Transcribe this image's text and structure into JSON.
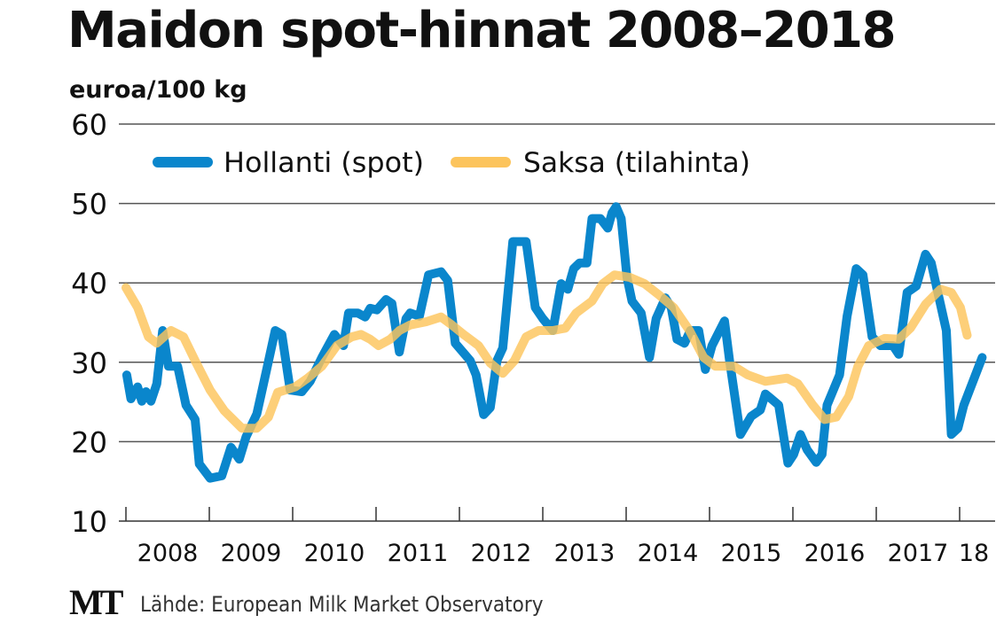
{
  "chart_data": {
    "type": "line",
    "title": "Maidon spot-hinnat 2008–2018",
    "ylabel": "euroa/100 kg",
    "xlabel": "",
    "ylim": [
      10,
      60
    ],
    "xlim": [
      2008,
      2018.32
    ],
    "yticks": [
      "60",
      "50",
      "40",
      "30",
      "20",
      "10"
    ],
    "ytick_values": [
      60,
      50,
      40,
      30,
      20,
      10
    ],
    "xtick_labels": [
      "2008",
      "2009",
      "2010",
      "2011",
      "2012",
      "2013",
      "2014",
      "2015",
      "2016",
      "2017",
      "18"
    ],
    "grid": true,
    "legend_position": "top",
    "series": [
      {
        "name": "Hollanti (spot)",
        "color": "#0a86cc",
        "points": [
          [
            2008.01,
            28.4
          ],
          [
            2008.06,
            25.4
          ],
          [
            2008.14,
            26.9
          ],
          [
            2008.19,
            25.1
          ],
          [
            2008.24,
            26.3
          ],
          [
            2008.3,
            25.1
          ],
          [
            2008.37,
            27.3
          ],
          [
            2008.44,
            34.0
          ],
          [
            2008.51,
            29.5
          ],
          [
            2008.62,
            29.5
          ],
          [
            2008.72,
            24.6
          ],
          [
            2008.83,
            22.8
          ],
          [
            2008.88,
            17.2
          ],
          [
            2009.01,
            15.4
          ],
          [
            2009.15,
            15.7
          ],
          [
            2009.26,
            19.3
          ],
          [
            2009.36,
            17.8
          ],
          [
            2009.44,
            20.6
          ],
          [
            2009.57,
            23.5
          ],
          [
            2009.68,
            28.7
          ],
          [
            2009.79,
            34.0
          ],
          [
            2009.87,
            33.5
          ],
          [
            2009.97,
            26.5
          ],
          [
            2010.11,
            26.3
          ],
          [
            2010.21,
            27.6
          ],
          [
            2010.35,
            30.6
          ],
          [
            2010.5,
            33.5
          ],
          [
            2010.61,
            32.1
          ],
          [
            2010.67,
            36.2
          ],
          [
            2010.78,
            36.2
          ],
          [
            2010.87,
            35.7
          ],
          [
            2010.93,
            36.8
          ],
          [
            2011.01,
            36.6
          ],
          [
            2011.12,
            37.9
          ],
          [
            2011.19,
            37.4
          ],
          [
            2011.28,
            31.3
          ],
          [
            2011.36,
            35.5
          ],
          [
            2011.41,
            36.2
          ],
          [
            2011.52,
            35.8
          ],
          [
            2011.63,
            41.0
          ],
          [
            2011.78,
            41.4
          ],
          [
            2011.86,
            40.3
          ],
          [
            2011.95,
            32.4
          ],
          [
            2012.13,
            30.2
          ],
          [
            2012.2,
            28.4
          ],
          [
            2012.29,
            23.4
          ],
          [
            2012.37,
            24.3
          ],
          [
            2012.45,
            30.2
          ],
          [
            2012.52,
            31.8
          ],
          [
            2012.64,
            45.2
          ],
          [
            2012.8,
            45.2
          ],
          [
            2012.91,
            36.9
          ],
          [
            2013.0,
            35.5
          ],
          [
            2013.12,
            34.0
          ],
          [
            2013.22,
            39.9
          ],
          [
            2013.3,
            39.2
          ],
          [
            2013.37,
            41.8
          ],
          [
            2013.44,
            42.5
          ],
          [
            2013.53,
            42.5
          ],
          [
            2013.59,
            48.1
          ],
          [
            2013.69,
            48.1
          ],
          [
            2013.78,
            46.9
          ],
          [
            2013.83,
            48.8
          ],
          [
            2013.88,
            49.6
          ],
          [
            2013.94,
            48.1
          ],
          [
            2014.01,
            40.7
          ],
          [
            2014.07,
            37.7
          ],
          [
            2014.18,
            36.2
          ],
          [
            2014.28,
            30.6
          ],
          [
            2014.36,
            35.5
          ],
          [
            2014.47,
            38.1
          ],
          [
            2014.54,
            36.9
          ],
          [
            2014.61,
            32.9
          ],
          [
            2014.7,
            32.4
          ],
          [
            2014.77,
            34.0
          ],
          [
            2014.87,
            34.0
          ],
          [
            2014.95,
            29.1
          ],
          [
            2015.03,
            32.1
          ],
          [
            2015.18,
            35.2
          ],
          [
            2015.24,
            30.2
          ],
          [
            2015.37,
            20.9
          ],
          [
            2015.5,
            23.2
          ],
          [
            2015.61,
            24.0
          ],
          [
            2015.67,
            26.0
          ],
          [
            2015.74,
            25.4
          ],
          [
            2015.83,
            24.6
          ],
          [
            2015.94,
            17.3
          ],
          [
            2016.01,
            18.4
          ],
          [
            2016.09,
            20.9
          ],
          [
            2016.17,
            19.0
          ],
          [
            2016.28,
            17.4
          ],
          [
            2016.35,
            18.4
          ],
          [
            2016.41,
            24.6
          ],
          [
            2016.56,
            28.4
          ],
          [
            2016.65,
            35.8
          ],
          [
            2016.76,
            41.8
          ],
          [
            2016.84,
            41.0
          ],
          [
            2016.95,
            33.2
          ],
          [
            2017.05,
            32.1
          ],
          [
            2017.2,
            32.1
          ],
          [
            2017.27,
            31.0
          ],
          [
            2017.37,
            38.8
          ],
          [
            2017.48,
            39.6
          ],
          [
            2017.59,
            43.6
          ],
          [
            2017.66,
            42.5
          ],
          [
            2017.84,
            34.0
          ],
          [
            2017.9,
            20.9
          ],
          [
            2017.98,
            21.7
          ],
          [
            2018.05,
            24.6
          ],
          [
            2018.27,
            30.6
          ]
        ]
      },
      {
        "name": "Saksa (tilahinta)",
        "color": "#fcc45c",
        "points": [
          [
            2008.0,
            39.4
          ],
          [
            2008.14,
            36.9
          ],
          [
            2008.27,
            33.2
          ],
          [
            2008.37,
            32.4
          ],
          [
            2008.54,
            34.0
          ],
          [
            2008.69,
            33.2
          ],
          [
            2008.83,
            30.2
          ],
          [
            2009.01,
            26.5
          ],
          [
            2009.18,
            23.9
          ],
          [
            2009.39,
            21.7
          ],
          [
            2009.57,
            21.7
          ],
          [
            2009.71,
            23.1
          ],
          [
            2009.82,
            26.2
          ],
          [
            2010.03,
            26.9
          ],
          [
            2010.18,
            28.0
          ],
          [
            2010.35,
            29.5
          ],
          [
            2010.53,
            32.1
          ],
          [
            2010.71,
            33.2
          ],
          [
            2010.82,
            33.5
          ],
          [
            2010.93,
            32.9
          ],
          [
            2011.03,
            32.1
          ],
          [
            2011.17,
            32.9
          ],
          [
            2011.28,
            34.0
          ],
          [
            2011.41,
            34.7
          ],
          [
            2011.6,
            35.1
          ],
          [
            2011.78,
            35.7
          ],
          [
            2011.91,
            34.7
          ],
          [
            2012.05,
            33.5
          ],
          [
            2012.23,
            32.1
          ],
          [
            2012.37,
            29.9
          ],
          [
            2012.52,
            28.6
          ],
          [
            2012.66,
            30.2
          ],
          [
            2012.8,
            33.2
          ],
          [
            2012.95,
            34.0
          ],
          [
            2013.12,
            34.0
          ],
          [
            2013.27,
            34.3
          ],
          [
            2013.4,
            36.2
          ],
          [
            2013.59,
            37.7
          ],
          [
            2013.72,
            39.9
          ],
          [
            2013.86,
            41.0
          ],
          [
            2014.04,
            40.7
          ],
          [
            2014.22,
            39.9
          ],
          [
            2014.39,
            38.5
          ],
          [
            2014.57,
            36.9
          ],
          [
            2014.76,
            34.0
          ],
          [
            2014.93,
            30.6
          ],
          [
            2015.07,
            29.5
          ],
          [
            2015.29,
            29.5
          ],
          [
            2015.46,
            28.4
          ],
          [
            2015.67,
            27.6
          ],
          [
            2015.93,
            28.0
          ],
          [
            2016.06,
            27.3
          ],
          [
            2016.24,
            24.6
          ],
          [
            2016.38,
            22.8
          ],
          [
            2016.52,
            23.1
          ],
          [
            2016.67,
            25.7
          ],
          [
            2016.78,
            29.5
          ],
          [
            2016.91,
            32.1
          ],
          [
            2017.1,
            33.0
          ],
          [
            2017.27,
            32.9
          ],
          [
            2017.41,
            34.3
          ],
          [
            2017.59,
            37.3
          ],
          [
            2017.77,
            39.2
          ],
          [
            2017.9,
            38.8
          ],
          [
            2018.01,
            36.9
          ],
          [
            2018.09,
            33.4
          ]
        ]
      }
    ]
  },
  "unit_label": "euroa/100 kg",
  "footer": {
    "logo": "MT",
    "source": "Lähde: European Milk Market Observatory"
  }
}
